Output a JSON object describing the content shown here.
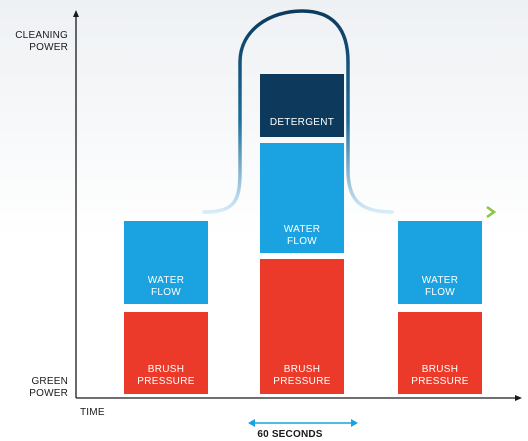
{
  "axes": {
    "y_top_label": "CLEANING\nPOWER",
    "y_bottom_label": "GREEN\nPOWER",
    "x_label": "TIME",
    "duration_label": "60 SECONDS"
  },
  "blocks": {
    "left_water": "WATER\nFLOW",
    "left_brush": "BRUSH\nPRESSURE",
    "center_detergent": "DETERGENT",
    "center_water": "WATER\nFLOW",
    "center_brush": "BRUSH\nPRESSURE",
    "right_water": "WATER\nFLOW",
    "right_brush": "BRUSH\nPRESSURE"
  },
  "colors": {
    "brush_pressure": "#ec3a2a",
    "water_flow": "#1aa3e0",
    "detergent": "#0d3a5c",
    "curve": "#0d3a5c",
    "arrowhead": "#8dc63f",
    "duration_marker": "#1aa3e0"
  }
}
